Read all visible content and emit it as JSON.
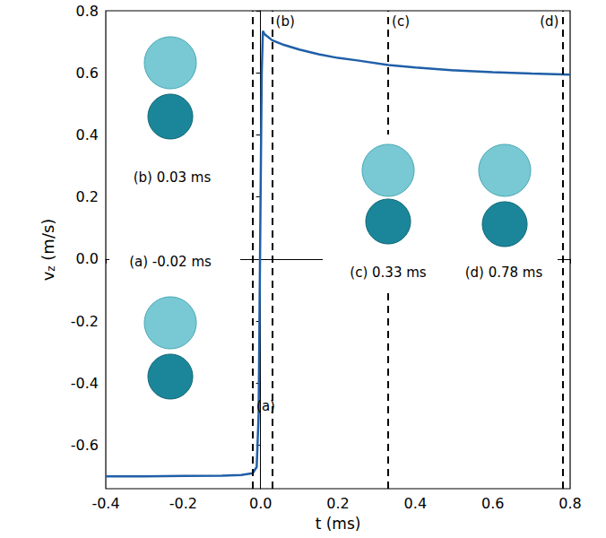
{
  "chart_data": {
    "type": "line",
    "x_label": "t (ms)",
    "y_label": "vz (m/s)",
    "x": [
      -0.4,
      -0.3,
      -0.2,
      -0.1,
      -0.05,
      -0.02,
      -0.01,
      -0.005,
      0.0,
      0.003,
      0.006,
      0.01,
      0.03,
      0.06,
      0.1,
      0.15,
      0.2,
      0.25,
      0.33,
      0.4,
      0.5,
      0.6,
      0.7,
      0.78,
      0.8
    ],
    "values": [
      -0.7,
      -0.7,
      -0.699,
      -0.698,
      -0.696,
      -0.69,
      -0.67,
      -0.5,
      0.2,
      0.6,
      0.735,
      0.725,
      0.705,
      0.69,
      0.675,
      0.66,
      0.648,
      0.64,
      0.625,
      0.617,
      0.608,
      0.602,
      0.598,
      0.595,
      0.594
    ],
    "color": "#1f5fa8",
    "line_style": "solid",
    "xlim": [
      -0.4,
      0.8
    ],
    "xticks": [
      -0.4,
      -0.2,
      {
        "value": 0,
        "label": "0.0"
      },
      0.2,
      0.4,
      0.6,
      0.8
    ],
    "ylim": [
      -0.74,
      0.8
    ],
    "yticks": [
      -0.6,
      -0.4,
      -0.2,
      {
        "value": 0,
        "label": "0.0"
      },
      0.2,
      0.4,
      0.6,
      0.8
    ],
    "grid": false,
    "markers": [
      {
        "x": -0.02,
        "label": "(a)",
        "caption": "(a) -0.02 ms"
      },
      {
        "x": 0.03,
        "label": "(b)",
        "caption": "(b) 0.03 ms"
      },
      {
        "x": 0.33,
        "label": "(c)",
        "caption": "(c) 0.33 ms"
      },
      {
        "x": 0.78,
        "label": "(d)",
        "caption": "(d) 0.78 ms"
      }
    ]
  }
}
